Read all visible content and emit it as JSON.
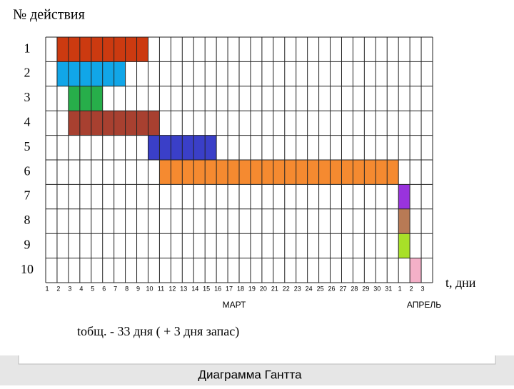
{
  "chart_data": {
    "type": "gantt",
    "title": "№ действия",
    "x_label": "t, дни",
    "month_labels": [
      "МАРТ",
      "АПРЕЛЬ"
    ],
    "note": "tобщ. - 33 дня ( + 3 дня запас)",
    "caption": "Диаграмма Гантта",
    "xlim": [
      0,
      34
    ],
    "xticks": [
      {
        "value": 0,
        "label": "1"
      },
      {
        "value": 1,
        "label": "2"
      },
      {
        "value": 2,
        "label": "3"
      },
      {
        "value": 3,
        "label": "4"
      },
      {
        "value": 4,
        "label": "5"
      },
      {
        "value": 5,
        "label": "6"
      },
      {
        "value": 6,
        "label": "7"
      },
      {
        "value": 7,
        "label": "8"
      },
      {
        "value": 8,
        "label": "9"
      },
      {
        "value": 9,
        "label": "10"
      },
      {
        "value": 10,
        "label": "11"
      },
      {
        "value": 11,
        "label": "12"
      },
      {
        "value": 12,
        "label": "13"
      },
      {
        "value": 13,
        "label": "14"
      },
      {
        "value": 14,
        "label": "15"
      },
      {
        "value": 15,
        "label": "16"
      },
      {
        "value": 16,
        "label": "17"
      },
      {
        "value": 17,
        "label": "18"
      },
      {
        "value": 18,
        "label": "19"
      },
      {
        "value": 19,
        "label": "20"
      },
      {
        "value": 20,
        "label": "21"
      },
      {
        "value": 21,
        "label": "22"
      },
      {
        "value": 22,
        "label": "23"
      },
      {
        "value": 23,
        "label": "24"
      },
      {
        "value": 24,
        "label": "25"
      },
      {
        "value": 25,
        "label": "26"
      },
      {
        "value": 26,
        "label": "27"
      },
      {
        "value": 27,
        "label": "28"
      },
      {
        "value": 28,
        "label": "29"
      },
      {
        "value": 29,
        "label": "30"
      },
      {
        "value": 30,
        "label": "31"
      },
      {
        "value": 31,
        "label": "1"
      },
      {
        "value": 32,
        "label": "2"
      },
      {
        "value": 33,
        "label": "3"
      }
    ],
    "tasks": [
      {
        "name": "1",
        "start": 1,
        "end": 9,
        "color": "#cc3a10"
      },
      {
        "name": "2",
        "start": 1,
        "end": 7,
        "color": "#11a6e8"
      },
      {
        "name": "3",
        "start": 2,
        "end": 5,
        "color": "#27ae4a"
      },
      {
        "name": "4",
        "start": 2,
        "end": 10,
        "color": "#a84030"
      },
      {
        "name": "5",
        "start": 9,
        "end": 15,
        "color": "#3a3fc8"
      },
      {
        "name": "6",
        "start": 10,
        "end": 31,
        "color": "#f58a30"
      },
      {
        "name": "7",
        "start": 31,
        "end": 32,
        "color": "#9933dd"
      },
      {
        "name": "8",
        "start": 31,
        "end": 32,
        "color": "#b87a55"
      },
      {
        "name": "9",
        "start": 31,
        "end": 32,
        "color": "#a8e028"
      },
      {
        "name": "10",
        "start": 32,
        "end": 33,
        "color": "#f4b0c8"
      }
    ]
  }
}
